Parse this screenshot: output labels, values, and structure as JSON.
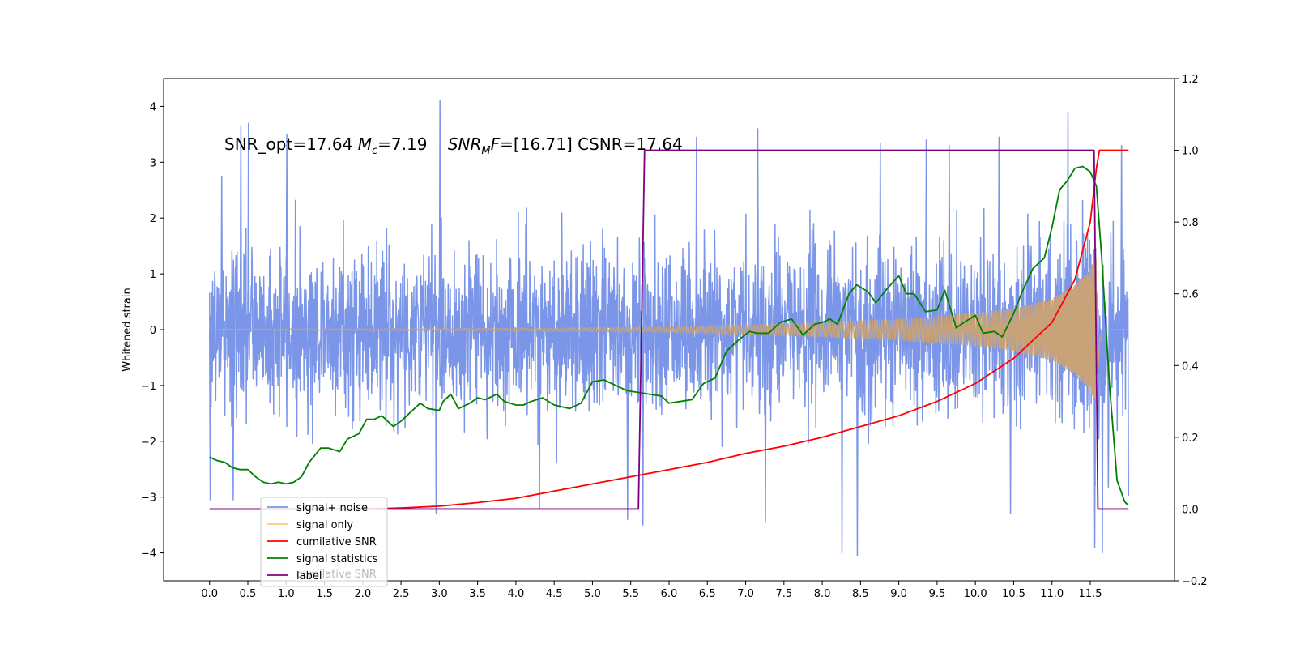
{
  "chart_data": {
    "type": "line",
    "annotation": {
      "snr_opt": "SNR_opt=17.64",
      "mc_symbol": "M",
      "mc_sub": "c",
      "mc_value": "=7.19",
      "snrmf_symbol": "SNR",
      "snrmf_sub": "M",
      "snrmf_f": "F",
      "snrmf_value": "=[16.71] CSNR=17.64"
    },
    "ylabel_left": "Whitened strain",
    "xlim": [
      -0.6,
      12.6
    ],
    "ylim_left": [
      -4.5,
      4.5
    ],
    "ylim_right": [
      -0.2,
      1.2
    ],
    "x_ticks": [
      0.0,
      0.5,
      1.0,
      1.5,
      2.0,
      2.5,
      3.0,
      3.5,
      4.0,
      4.5,
      5.0,
      5.5,
      6.0,
      6.5,
      7.0,
      7.5,
      8.0,
      8.5,
      9.0,
      9.5,
      10.0,
      10.5,
      11.0,
      11.5
    ],
    "x_tick_labels": [
      "0.0",
      "0.5",
      "1.0",
      "1.5",
      "2.0",
      "2.5",
      "3.0",
      "3.5",
      "4.0",
      "4.5",
      "5.0",
      "5.5",
      "6.0",
      "6.5",
      "7.0",
      "7.5",
      "8.0",
      "8.5",
      "9.0",
      "9.5",
      "10.0",
      "10.5",
      "11.0",
      "11.5"
    ],
    "y_left_ticks": [
      -4,
      -3,
      -2,
      -1,
      0,
      1,
      2,
      3,
      4
    ],
    "y_left_tick_labels": [
      "−4",
      "−3",
      "−2",
      "−1",
      "0",
      "1",
      "2",
      "3",
      "4"
    ],
    "y_right_ticks": [
      -0.2,
      0.0,
      0.2,
      0.4,
      0.6,
      0.8,
      1.0,
      1.2
    ],
    "y_right_tick_labels": [
      "−0.2",
      "0.0",
      "0.2",
      "0.4",
      "0.6",
      "0.8",
      "1.0",
      "1.2"
    ],
    "legend": {
      "position": "lower-left",
      "entries": [
        "signal+ noise",
        "signal only",
        "cumilative SNR",
        "signal statistics",
        "label"
      ],
      "ghost_text": "cumilative SNR"
    },
    "colors": {
      "noise": "#7b96e8",
      "signal": "#c8a37a",
      "signal_legend": "#ffc77a",
      "cumulative": "#ff0000",
      "statistics": "#008000",
      "label": "#800080"
    },
    "series": [
      {
        "name": "signal+ noise",
        "axis": "left",
        "x_range": [
          0.0,
          12.0
        ],
        "noise_std": 0.72,
        "notable_peaks": [
          [
            0.15,
            2.75
          ],
          [
            0.4,
            3.65
          ],
          [
            0.5,
            3.7
          ],
          [
            1.0,
            3.5
          ],
          [
            3.0,
            4.1
          ],
          [
            6.35,
            3.45
          ],
          [
            7.15,
            3.6
          ],
          [
            8.75,
            3.35
          ],
          [
            9.35,
            3.4
          ],
          [
            9.65,
            3.3
          ],
          [
            10.3,
            3.45
          ],
          [
            11.2,
            3.9
          ],
          [
            11.9,
            3.3
          ]
        ],
        "notable_troughs": [
          [
            0.0,
            -3.05
          ],
          [
            0.3,
            -3.05
          ],
          [
            2.95,
            -3.3
          ],
          [
            4.3,
            -3.2
          ],
          [
            5.45,
            -3.4
          ],
          [
            5.65,
            -3.5
          ],
          [
            7.25,
            -3.45
          ],
          [
            8.25,
            -4.0
          ],
          [
            8.45,
            -4.05
          ],
          [
            10.45,
            -3.3
          ],
          [
            11.55,
            -3.9
          ],
          [
            11.65,
            -4.0
          ]
        ]
      },
      {
        "name": "signal only",
        "axis": "left",
        "x_range": [
          0.0,
          12.0
        ],
        "merger_time": 11.6,
        "envelope": [
          [
            0.0,
            0.01
          ],
          [
            2.0,
            0.015
          ],
          [
            4.0,
            0.025
          ],
          [
            6.0,
            0.05
          ],
          [
            7.0,
            0.09
          ],
          [
            8.0,
            0.13
          ],
          [
            9.0,
            0.19
          ],
          [
            10.0,
            0.29
          ],
          [
            10.5,
            0.38
          ],
          [
            11.0,
            0.55
          ],
          [
            11.3,
            0.8
          ],
          [
            11.5,
            1.1
          ],
          [
            11.58,
            1.3
          ],
          [
            11.62,
            0.3
          ],
          [
            11.65,
            0.0
          ],
          [
            12.0,
            0.0
          ]
        ]
      },
      {
        "name": "cumilative SNR",
        "axis": "right",
        "points": [
          [
            0.0,
            0.0
          ],
          [
            2.0,
            0.0
          ],
          [
            2.5,
            0.003
          ],
          [
            3.0,
            0.008
          ],
          [
            3.5,
            0.018
          ],
          [
            4.0,
            0.03
          ],
          [
            4.5,
            0.05
          ],
          [
            5.0,
            0.07
          ],
          [
            5.5,
            0.09
          ],
          [
            6.0,
            0.11
          ],
          [
            6.5,
            0.13
          ],
          [
            7.0,
            0.155
          ],
          [
            7.5,
            0.175
          ],
          [
            8.0,
            0.2
          ],
          [
            8.5,
            0.23
          ],
          [
            9.0,
            0.26
          ],
          [
            9.5,
            0.3
          ],
          [
            10.0,
            0.35
          ],
          [
            10.5,
            0.42
          ],
          [
            11.0,
            0.52
          ],
          [
            11.3,
            0.64
          ],
          [
            11.5,
            0.8
          ],
          [
            11.58,
            0.95
          ],
          [
            11.62,
            1.0
          ],
          [
            12.0,
            1.0
          ]
        ]
      },
      {
        "name": "signal statistics",
        "axis": "right",
        "points": [
          [
            0.0,
            0.145
          ],
          [
            0.1,
            0.135
          ],
          [
            0.2,
            0.13
          ],
          [
            0.3,
            0.115
          ],
          [
            0.4,
            0.11
          ],
          [
            0.5,
            0.11
          ],
          [
            0.6,
            0.09
          ],
          [
            0.7,
            0.075
          ],
          [
            0.8,
            0.07
          ],
          [
            0.9,
            0.075
          ],
          [
            1.0,
            0.07
          ],
          [
            1.1,
            0.075
          ],
          [
            1.2,
            0.09
          ],
          [
            1.3,
            0.13
          ],
          [
            1.45,
            0.17
          ],
          [
            1.55,
            0.17
          ],
          [
            1.7,
            0.16
          ],
          [
            1.8,
            0.195
          ],
          [
            1.95,
            0.21
          ],
          [
            2.05,
            0.25
          ],
          [
            2.15,
            0.25
          ],
          [
            2.25,
            0.26
          ],
          [
            2.4,
            0.23
          ],
          [
            2.5,
            0.245
          ],
          [
            2.6,
            0.265
          ],
          [
            2.75,
            0.295
          ],
          [
            2.85,
            0.28
          ],
          [
            3.0,
            0.275
          ],
          [
            3.05,
            0.3
          ],
          [
            3.15,
            0.32
          ],
          [
            3.25,
            0.28
          ],
          [
            3.4,
            0.295
          ],
          [
            3.5,
            0.31
          ],
          [
            3.6,
            0.305
          ],
          [
            3.75,
            0.32
          ],
          [
            3.85,
            0.3
          ],
          [
            4.0,
            0.29
          ],
          [
            4.1,
            0.29
          ],
          [
            4.2,
            0.3
          ],
          [
            4.35,
            0.31
          ],
          [
            4.5,
            0.29
          ],
          [
            4.7,
            0.28
          ],
          [
            4.85,
            0.295
          ],
          [
            5.0,
            0.355
          ],
          [
            5.15,
            0.36
          ],
          [
            5.3,
            0.345
          ],
          [
            5.45,
            0.33
          ],
          [
            5.6,
            0.325
          ],
          [
            5.75,
            0.32
          ],
          [
            5.9,
            0.315
          ],
          [
            6.0,
            0.295
          ],
          [
            6.15,
            0.3
          ],
          [
            6.3,
            0.305
          ],
          [
            6.45,
            0.35
          ],
          [
            6.6,
            0.365
          ],
          [
            6.75,
            0.44
          ],
          [
            6.9,
            0.47
          ],
          [
            7.05,
            0.495
          ],
          [
            7.15,
            0.49
          ],
          [
            7.3,
            0.49
          ],
          [
            7.45,
            0.52
          ],
          [
            7.6,
            0.53
          ],
          [
            7.75,
            0.485
          ],
          [
            7.9,
            0.515
          ],
          [
            8.0,
            0.52
          ],
          [
            8.1,
            0.53
          ],
          [
            8.2,
            0.515
          ],
          [
            8.35,
            0.6
          ],
          [
            8.45,
            0.625
          ],
          [
            8.6,
            0.605
          ],
          [
            8.7,
            0.575
          ],
          [
            8.85,
            0.615
          ],
          [
            9.0,
            0.65
          ],
          [
            9.1,
            0.6
          ],
          [
            9.2,
            0.6
          ],
          [
            9.35,
            0.55
          ],
          [
            9.5,
            0.555
          ],
          [
            9.6,
            0.61
          ],
          [
            9.75,
            0.505
          ],
          [
            9.85,
            0.52
          ],
          [
            10.0,
            0.54
          ],
          [
            10.1,
            0.49
          ],
          [
            10.25,
            0.495
          ],
          [
            10.35,
            0.48
          ],
          [
            10.5,
            0.545
          ],
          [
            10.6,
            0.6
          ],
          [
            10.75,
            0.67
          ],
          [
            10.9,
            0.7
          ],
          [
            11.0,
            0.785
          ],
          [
            11.1,
            0.89
          ],
          [
            11.2,
            0.915
          ],
          [
            11.3,
            0.95
          ],
          [
            11.4,
            0.955
          ],
          [
            11.5,
            0.94
          ],
          [
            11.58,
            0.9
          ],
          [
            11.65,
            0.7
          ],
          [
            11.75,
            0.35
          ],
          [
            11.85,
            0.08
          ],
          [
            11.95,
            0.02
          ],
          [
            12.0,
            0.01
          ]
        ]
      },
      {
        "name": "label",
        "axis": "right",
        "points": [
          [
            0.0,
            0.0
          ],
          [
            5.6,
            0.0
          ],
          [
            5.68,
            1.0
          ],
          [
            11.55,
            1.0
          ],
          [
            11.6,
            0.0
          ],
          [
            12.0,
            0.0
          ]
        ]
      }
    ]
  }
}
